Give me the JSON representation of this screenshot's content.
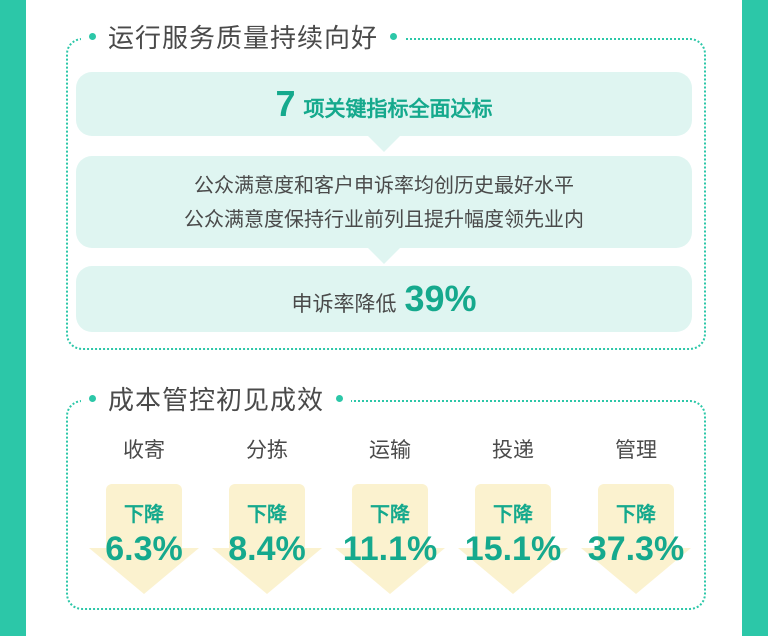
{
  "section1": {
    "title": "运行服务质量持续向好",
    "card1": {
      "number": "7",
      "text": "项关键指标全面达标"
    },
    "card2": {
      "line1": "公众满意度和客户申诉率均创历史最好水平",
      "line2": "公众满意度保持行业前列且提升幅度领先业内"
    },
    "card3": {
      "text": "申诉率降低",
      "value": "39%"
    }
  },
  "section2": {
    "title": "成本管控初见成效",
    "items": [
      {
        "label": "收寄",
        "change": "下降",
        "value": "6.3%"
      },
      {
        "label": "分拣",
        "change": "下降",
        "value": "8.4%"
      },
      {
        "label": "运输",
        "change": "下降",
        "value": "11.1%"
      },
      {
        "label": "投递",
        "change": "下降",
        "value": "15.1%"
      },
      {
        "label": "管理",
        "change": "下降",
        "value": "37.3%"
      }
    ]
  },
  "colors": {
    "accent": "#2cc7a8",
    "highlight": "#15a98d",
    "card": "#dff5f1",
    "arrow": "#fbf2cf",
    "text": "#4a4a4a"
  }
}
